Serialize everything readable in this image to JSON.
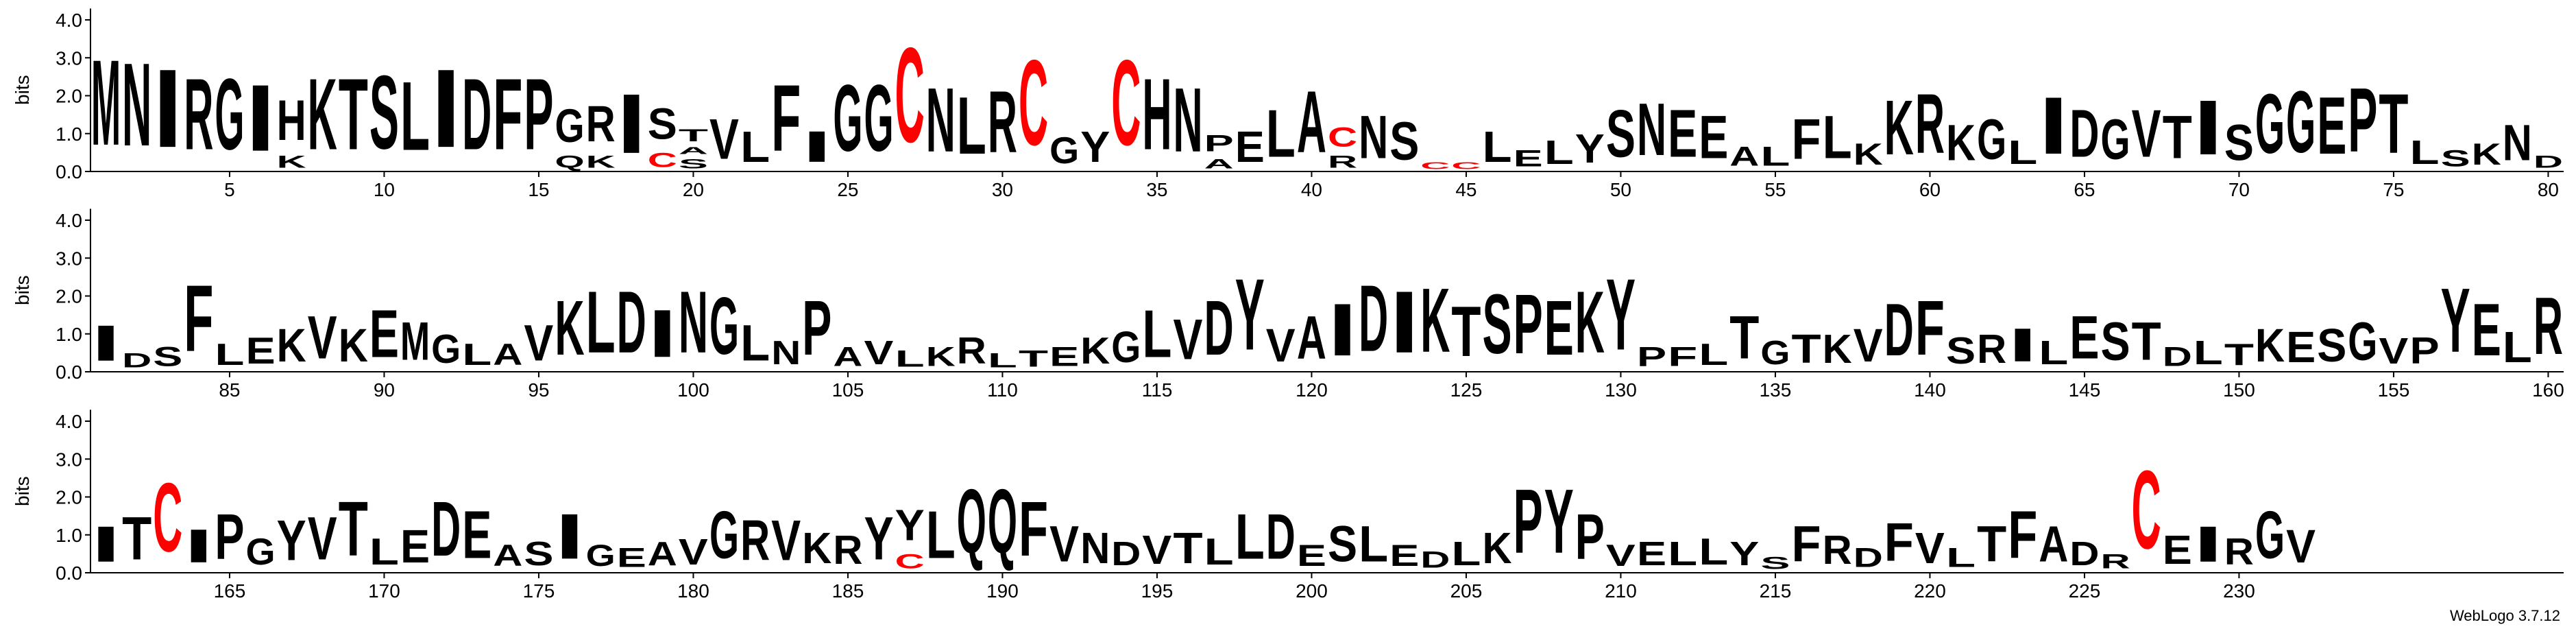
{
  "chart_data": {
    "type": "logo",
    "ylabel": "bits",
    "ylim": [
      0,
      4.3
    ],
    "yticks": [
      {
        "value": 0,
        "label": "0.0"
      },
      {
        "value": 1,
        "label": "1.0"
      },
      {
        "value": 2,
        "label": "2.0"
      },
      {
        "value": 3,
        "label": "3.0"
      },
      {
        "value": 4,
        "label": "4.0"
      }
    ],
    "xticks": [
      5,
      10,
      15,
      20,
      25,
      30,
      35,
      40,
      45,
      50,
      55,
      60,
      65,
      70,
      75,
      80,
      85,
      90,
      95,
      100,
      105,
      110,
      115,
      120,
      125,
      130,
      135,
      140,
      145,
      150,
      155,
      160,
      165,
      170,
      175,
      180,
      185,
      190,
      195,
      200,
      205,
      210,
      215,
      220,
      225,
      230
    ],
    "color": "#000000",
    "letter_colors": {
      "C": "#ff0000"
    },
    "credit": "WebLogo 3.7.12",
    "stacks": [
      [
        [
          "M",
          3.6
        ]
      ],
      [
        [
          "N",
          3.5
        ]
      ],
      [
        [
          "I",
          3.3
        ]
      ],
      [
        [
          "R",
          3.0
        ]
      ],
      [
        [
          "G",
          3.0
        ]
      ],
      [
        [
          "I",
          2.8
        ]
      ],
      [
        [
          "K",
          0.5
        ],
        [
          "H",
          1.7
        ]
      ],
      [
        [
          "K",
          3.0
        ]
      ],
      [
        [
          "T",
          3.0
        ]
      ],
      [
        [
          "S",
          3.1
        ]
      ],
      [
        [
          "L",
          2.9
        ]
      ],
      [
        [
          "I",
          3.3
        ]
      ],
      [
        [
          "D",
          3.0
        ]
      ],
      [
        [
          "F",
          3.0
        ]
      ],
      [
        [
          "P",
          3.0
        ]
      ],
      [
        [
          "Q",
          0.5
        ],
        [
          "G",
          1.4
        ]
      ],
      [
        [
          "K",
          0.5
        ],
        [
          "R",
          1.5
        ]
      ],
      [
        [
          "I",
          2.5
        ]
      ],
      [
        [
          "C",
          0.6
        ],
        [
          "S",
          1.3
        ]
      ],
      [
        [
          "S",
          0.4
        ],
        [
          "A",
          0.3
        ],
        [
          "T",
          0.5
        ]
      ],
      [
        [
          "V",
          1.7
        ]
      ],
      [
        [
          "L",
          1.3
        ]
      ],
      [
        [
          "F",
          2.8
        ]
      ],
      [
        [
          "I",
          1.3
        ]
      ],
      [
        [
          "G",
          2.8
        ]
      ],
      [
        [
          "G",
          2.8
        ]
      ],
      [
        [
          "C",
          4.0
        ]
      ],
      [
        [
          "N",
          2.7
        ]
      ],
      [
        [
          "L",
          2.4
        ]
      ],
      [
        [
          "R",
          2.6
        ]
      ],
      [
        [
          "C",
          3.6
        ]
      ],
      [
        [
          "G",
          1.1
        ]
      ],
      [
        [
          "Y",
          1.3
        ]
      ],
      [
        [
          "C",
          3.6
        ]
      ],
      [
        [
          "H",
          3.0
        ]
      ],
      [
        [
          "N",
          2.7
        ]
      ],
      [
        [
          "A",
          0.4
        ],
        [
          "P",
          0.7
        ]
      ],
      [
        [
          "E",
          1.3
        ]
      ],
      [
        [
          "L",
          2.0
        ]
      ],
      [
        [
          "A",
          2.6
        ]
      ],
      [
        [
          "R",
          0.5
        ],
        [
          "C",
          0.8
        ]
      ],
      [
        [
          "N",
          1.8
        ]
      ],
      [
        [
          "S",
          1.6
        ]
      ],
      [
        [
          "C",
          0.3
        ]
      ],
      [
        [
          "C",
          0.3
        ]
      ],
      [
        [
          "L",
          1.3
        ]
      ],
      [
        [
          "E",
          0.7
        ]
      ],
      [
        [
          "L",
          1.0
        ]
      ],
      [
        [
          "Y",
          1.2
        ]
      ],
      [
        [
          "S",
          2.0
        ]
      ],
      [
        [
          "N",
          2.2
        ]
      ],
      [
        [
          "E",
          2.0
        ]
      ],
      [
        [
          "E",
          1.8
        ]
      ],
      [
        [
          "A",
          0.8
        ]
      ],
      [
        [
          "L",
          0.8
        ]
      ],
      [
        [
          "F",
          1.7
        ]
      ],
      [
        [
          "L",
          1.8
        ]
      ],
      [
        [
          "K",
          0.9
        ]
      ],
      [
        [
          "K",
          2.3
        ]
      ],
      [
        [
          "R",
          2.5
        ]
      ],
      [
        [
          "K",
          1.5
        ]
      ],
      [
        [
          "G",
          1.7
        ]
      ],
      [
        [
          "L",
          1.0
        ]
      ],
      [
        [
          "I",
          2.4
        ]
      ],
      [
        [
          "D",
          2.0
        ]
      ],
      [
        [
          "G",
          1.7
        ]
      ],
      [
        [
          "V",
          2.0
        ]
      ],
      [
        [
          "T",
          1.8
        ]
      ],
      [
        [
          "I",
          2.3
        ]
      ],
      [
        [
          "S",
          1.5
        ]
      ],
      [
        [
          "G",
          2.5
        ]
      ],
      [
        [
          "G",
          2.6
        ]
      ],
      [
        [
          "E",
          2.4
        ]
      ],
      [
        [
          "P",
          2.7
        ]
      ],
      [
        [
          "T",
          2.5
        ]
      ],
      [
        [
          "L",
          1.0
        ]
      ],
      [
        [
          "S",
          0.7
        ]
      ],
      [
        [
          "K",
          0.9
        ]
      ],
      [
        [
          "N",
          1.5
        ]
      ],
      [
        [
          "D",
          0.5
        ]
      ],
      [
        [
          "I",
          1.5
        ]
      ],
      [
        [
          "D",
          0.6
        ]
      ],
      [
        [
          "S",
          0.8
        ]
      ],
      [
        [
          "F",
          2.8
        ]
      ],
      [
        [
          "L",
          0.9
        ]
      ],
      [
        [
          "E",
          1.1
        ]
      ],
      [
        [
          "K",
          1.4
        ]
      ],
      [
        [
          "V",
          1.8
        ]
      ],
      [
        [
          "K",
          1.4
        ]
      ],
      [
        [
          "E",
          2.0
        ]
      ],
      [
        [
          "M",
          1.6
        ]
      ],
      [
        [
          "G",
          1.2
        ]
      ],
      [
        [
          "L",
          0.9
        ]
      ],
      [
        [
          "A",
          0.9
        ]
      ],
      [
        [
          "V",
          1.5
        ]
      ],
      [
        [
          "K",
          2.3
        ]
      ],
      [
        [
          "L",
          2.6
        ]
      ],
      [
        [
          "D",
          2.6
        ]
      ],
      [
        [
          "I",
          2.0
        ]
      ],
      [
        [
          "N",
          2.6
        ]
      ],
      [
        [
          "G",
          2.4
        ]
      ],
      [
        [
          "L",
          1.5
        ]
      ],
      [
        [
          "N",
          1.0
        ]
      ],
      [
        [
          "P",
          2.3
        ]
      ],
      [
        [
          "A",
          0.8
        ]
      ],
      [
        [
          "V",
          1.0
        ]
      ],
      [
        [
          "L",
          0.7
        ]
      ],
      [
        [
          "K",
          0.8
        ]
      ],
      [
        [
          "R",
          1.1
        ]
      ],
      [
        [
          "L",
          0.6
        ]
      ],
      [
        [
          "T",
          0.7
        ]
      ],
      [
        [
          "E",
          0.8
        ]
      ],
      [
        [
          "K",
          1.1
        ]
      ],
      [
        [
          "G",
          1.3
        ]
      ],
      [
        [
          "L",
          2.0
        ]
      ],
      [
        [
          "V",
          1.7
        ]
      ],
      [
        [
          "D",
          2.3
        ]
      ],
      [
        [
          "Y",
          3.0
        ]
      ],
      [
        [
          "V",
          1.4
        ]
      ],
      [
        [
          "A",
          1.8
        ]
      ],
      [
        [
          "I",
          2.2
        ]
      ],
      [
        [
          "D",
          2.8
        ]
      ],
      [
        [
          "I",
          2.6
        ]
      ],
      [
        [
          "K",
          2.7
        ]
      ],
      [
        [
          "T",
          2.1
        ]
      ],
      [
        [
          "S",
          2.5
        ]
      ],
      [
        [
          "P",
          2.5
        ]
      ],
      [
        [
          "E",
          2.3
        ]
      ],
      [
        [
          "K",
          2.6
        ]
      ],
      [
        [
          "Y",
          3.0
        ]
      ],
      [
        [
          "P",
          0.8
        ]
      ],
      [
        [
          "F",
          0.8
        ]
      ],
      [
        [
          "L",
          0.9
        ]
      ],
      [
        [
          "T",
          1.8
        ]
      ],
      [
        [
          "G",
          1.0
        ]
      ],
      [
        [
          "T",
          1.2
        ]
      ],
      [
        [
          "K",
          1.2
        ]
      ],
      [
        [
          "V",
          1.4
        ]
      ],
      [
        [
          "D",
          2.2
        ]
      ],
      [
        [
          "F",
          2.3
        ]
      ],
      [
        [
          "S",
          1.1
        ]
      ],
      [
        [
          "R",
          1.2
        ]
      ],
      [
        [
          "I",
          1.4
        ]
      ],
      [
        [
          "L",
          1.0
        ]
      ],
      [
        [
          "E",
          1.8
        ]
      ],
      [
        [
          "S",
          1.6
        ]
      ],
      [
        [
          "T",
          1.6
        ]
      ],
      [
        [
          "D",
          0.8
        ]
      ],
      [
        [
          "L",
          1.0
        ]
      ],
      [
        [
          "T",
          0.9
        ]
      ],
      [
        [
          "K",
          1.4
        ]
      ],
      [
        [
          "E",
          1.3
        ]
      ],
      [
        [
          "S",
          1.4
        ]
      ],
      [
        [
          "G",
          1.6
        ]
      ],
      [
        [
          "V",
          1.1
        ]
      ],
      [
        [
          "P",
          1.1
        ]
      ],
      [
        [
          "Y",
          2.7
        ]
      ],
      [
        [
          "E",
          2.2
        ]
      ],
      [
        [
          "L",
          1.3
        ]
      ],
      [
        [
          "R",
          2.4
        ]
      ],
      [
        [
          "I",
          1.5
        ]
      ],
      [
        [
          "T",
          1.8
        ]
      ],
      [
        [
          "C",
          2.9
        ]
      ],
      [
        [
          "I",
          1.4
        ]
      ],
      [
        [
          "P",
          1.9
        ]
      ],
      [
        [
          "G",
          1.1
        ]
      ],
      [
        [
          "Y",
          1.7
        ]
      ],
      [
        [
          "V",
          1.8
        ]
      ],
      [
        [
          "T",
          2.3
        ]
      ],
      [
        [
          "L",
          1.1
        ]
      ],
      [
        [
          "E",
          1.4
        ]
      ],
      [
        [
          "D",
          2.3
        ]
      ],
      [
        [
          "E",
          2.0
        ]
      ],
      [
        [
          "A",
          0.9
        ]
      ],
      [
        [
          "S",
          1.0
        ]
      ],
      [
        [
          "I",
          1.9
        ]
      ],
      [
        [
          "G",
          0.9
        ]
      ],
      [
        [
          "E",
          0.8
        ]
      ],
      [
        [
          "A",
          1.0
        ]
      ],
      [
        [
          "V",
          1.1
        ]
      ],
      [
        [
          "G",
          2.0
        ]
      ],
      [
        [
          "R",
          1.7
        ]
      ],
      [
        [
          "V",
          1.7
        ]
      ],
      [
        [
          "K",
          1.3
        ]
      ],
      [
        [
          "R",
          1.2
        ]
      ],
      [
        [
          "Y",
          1.8
        ]
      ],
      [
        [
          "C",
          0.6
        ],
        [
          "Y",
          1.3
        ]
      ],
      [
        [
          "L",
          2.0
        ]
      ],
      [
        [
          "Q",
          2.7
        ]
      ],
      [
        [
          "Q",
          2.7
        ]
      ],
      [
        [
          "F",
          2.3
        ]
      ],
      [
        [
          "V",
          1.5
        ]
      ],
      [
        [
          "N",
          1.3
        ]
      ],
      [
        [
          "D",
          1.0
        ]
      ],
      [
        [
          "V",
          1.2
        ]
      ],
      [
        [
          "T",
          1.3
        ]
      ],
      [
        [
          "L",
          1.1
        ]
      ],
      [
        [
          "L",
          1.9
        ]
      ],
      [
        [
          "D",
          1.9
        ]
      ],
      [
        [
          "E",
          0.9
        ]
      ],
      [
        [
          "S",
          1.5
        ]
      ],
      [
        [
          "L",
          1.5
        ]
      ],
      [
        [
          "E",
          0.9
        ]
      ],
      [
        [
          "D",
          0.7
        ]
      ],
      [
        [
          "L",
          1.0
        ]
      ],
      [
        [
          "K",
          1.3
        ]
      ],
      [
        [
          "P",
          2.7
        ]
      ],
      [
        [
          "Y",
          2.7
        ]
      ],
      [
        [
          "P",
          1.9
        ]
      ],
      [
        [
          "V",
          0.9
        ]
      ],
      [
        [
          "E",
          1.0
        ]
      ],
      [
        [
          "L",
          1.0
        ]
      ],
      [
        [
          "L",
          1.1
        ]
      ],
      [
        [
          "Y",
          1.0
        ]
      ],
      [
        [
          "S",
          0.5
        ]
      ],
      [
        [
          "F",
          1.5
        ]
      ],
      [
        [
          "R",
          1.2
        ]
      ],
      [
        [
          "D",
          0.8
        ]
      ],
      [
        [
          "F",
          1.6
        ]
      ],
      [
        [
          "V",
          1.3
        ]
      ],
      [
        [
          "L",
          0.8
        ]
      ],
      [
        [
          "T",
          1.5
        ]
      ],
      [
        [
          "F",
          2.0
        ]
      ],
      [
        [
          "A",
          1.5
        ]
      ],
      [
        [
          "D",
          1.0
        ]
      ],
      [
        [
          "R",
          0.6
        ]
      ],
      [
        [
          "C",
          3.3
        ]
      ],
      [
        [
          "E",
          1.2
        ]
      ],
      [
        [
          "I",
          1.5
        ]
      ],
      [
        [
          "R",
          1.1
        ]
      ],
      [
        [
          "G",
          2.0
        ]
      ],
      [
        [
          "V",
          1.4
        ]
      ]
    ]
  }
}
